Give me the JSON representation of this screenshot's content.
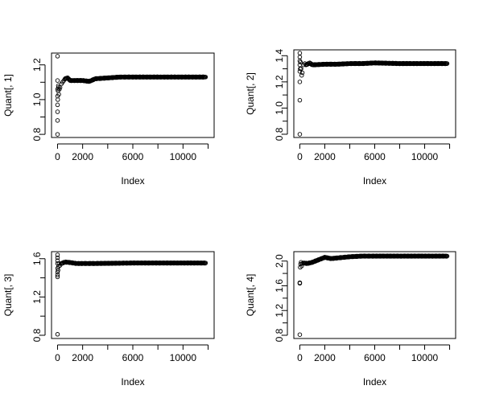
{
  "chart_data": [
    {
      "type": "scatter",
      "xlabel": "Index",
      "ylabel": "Quant[, 1]",
      "xlim": [
        0,
        12000
      ],
      "ylim": [
        0.8,
        1.25
      ],
      "xticks": [
        0,
        2000,
        6000,
        10000
      ],
      "xticks_minor": [
        4000,
        8000,
        12000
      ],
      "yticks": [
        0.8,
        1.0,
        1.2
      ],
      "yticks_minor": [
        0.9,
        1.1
      ],
      "early_points": [
        [
          0,
          1.25
        ],
        [
          0,
          1.11
        ],
        [
          0,
          1.06
        ],
        [
          0,
          1.02
        ],
        [
          0,
          0.97
        ],
        [
          0,
          0.93
        ],
        [
          0,
          0.88
        ],
        [
          0,
          0.8
        ],
        [
          20,
          1.0
        ],
        [
          40,
          1.05
        ],
        [
          60,
          1.08
        ],
        [
          80,
          1.07
        ],
        [
          100,
          1.03
        ],
        [
          150,
          1.06
        ],
        [
          200,
          1.07
        ],
        [
          300,
          1.09
        ],
        [
          400,
          1.1
        ],
        [
          500,
          1.11
        ],
        [
          600,
          1.12
        ]
      ],
      "trend": [
        [
          600,
          1.12
        ],
        [
          800,
          1.125
        ],
        [
          1000,
          1.11
        ],
        [
          1500,
          1.11
        ],
        [
          2000,
          1.11
        ],
        [
          2500,
          1.105
        ],
        [
          2700,
          1.11
        ],
        [
          3000,
          1.12
        ],
        [
          4000,
          1.125
        ],
        [
          5000,
          1.13
        ],
        [
          6000,
          1.13
        ],
        [
          8000,
          1.13
        ],
        [
          10000,
          1.13
        ],
        [
          11800,
          1.13
        ]
      ]
    },
    {
      "type": "scatter",
      "xlabel": "Index",
      "ylabel": "Quant[, 2]",
      "xlim": [
        0,
        12000
      ],
      "ylim": [
        0.8,
        1.42
      ],
      "xticks": [
        0,
        2000,
        6000,
        10000
      ],
      "xticks_minor": [
        4000,
        8000,
        12000
      ],
      "yticks": [
        0.8,
        1.0,
        1.2,
        1.4
      ],
      "yticks_minor": [
        0.9,
        1.1,
        1.3
      ],
      "early_points": [
        [
          0,
          1.42
        ],
        [
          0,
          1.39
        ],
        [
          0,
          1.36
        ],
        [
          0,
          1.33
        ],
        [
          0,
          1.28
        ],
        [
          0,
          1.2
        ],
        [
          0,
          1.06
        ],
        [
          0,
          0.8
        ],
        [
          30,
          1.3
        ],
        [
          60,
          1.35
        ],
        [
          100,
          1.3
        ],
        [
          150,
          1.25
        ],
        [
          200,
          1.27
        ],
        [
          300,
          1.33
        ],
        [
          400,
          1.34
        ],
        [
          500,
          1.33
        ]
      ],
      "trend": [
        [
          500,
          1.33
        ],
        [
          800,
          1.345
        ],
        [
          1000,
          1.33
        ],
        [
          2000,
          1.335
        ],
        [
          3000,
          1.335
        ],
        [
          4000,
          1.34
        ],
        [
          5000,
          1.34
        ],
        [
          6000,
          1.345
        ],
        [
          8000,
          1.34
        ],
        [
          10000,
          1.34
        ],
        [
          11800,
          1.34
        ]
      ]
    },
    {
      "type": "scatter",
      "xlabel": "Index",
      "ylabel": "Quant[, 3]",
      "xlim": [
        0,
        12000
      ],
      "ylim": [
        0.8,
        1.64
      ],
      "xticks": [
        0,
        2000,
        6000,
        10000
      ],
      "xticks_minor": [
        4000,
        8000,
        12000
      ],
      "yticks": [
        0.8,
        1.2,
        1.6
      ],
      "yticks_minor": [
        1.0,
        1.4
      ],
      "early_points": [
        [
          0,
          1.64
        ],
        [
          0,
          1.61
        ],
        [
          0,
          1.58
        ],
        [
          0,
          1.55
        ],
        [
          0,
          1.5
        ],
        [
          0,
          1.46
        ],
        [
          0,
          1.43
        ],
        [
          0,
          1.41
        ],
        [
          0,
          0.81
        ],
        [
          40,
          1.48
        ],
        [
          80,
          1.52
        ],
        [
          120,
          1.55
        ],
        [
          200,
          1.53
        ],
        [
          300,
          1.55
        ]
      ],
      "trend": [
        [
          300,
          1.55
        ],
        [
          600,
          1.565
        ],
        [
          1000,
          1.56
        ],
        [
          1500,
          1.55
        ],
        [
          2000,
          1.55
        ],
        [
          3000,
          1.55
        ],
        [
          6000,
          1.555
        ],
        [
          9000,
          1.555
        ],
        [
          11800,
          1.555
        ]
      ]
    },
    {
      "type": "scatter",
      "xlabel": "Index",
      "ylabel": "Quant[, 4]",
      "xlim": [
        0,
        12000
      ],
      "ylim": [
        0.8,
        2.1
      ],
      "xticks": [
        0,
        2000,
        6000,
        10000
      ],
      "xticks_minor": [
        4000,
        8000,
        12000
      ],
      "yticks": [
        0.8,
        1.2,
        1.6,
        2.0
      ],
      "yticks_minor": [
        1.0,
        1.4,
        1.8
      ],
      "early_points": [
        [
          0,
          1.65
        ],
        [
          0,
          1.64
        ],
        [
          0,
          0.81
        ],
        [
          30,
          1.9
        ],
        [
          60,
          1.95
        ],
        [
          100,
          1.98
        ],
        [
          150,
          1.92
        ],
        [
          200,
          1.96
        ],
        [
          300,
          1.97
        ]
      ],
      "trend": [
        [
          300,
          1.97
        ],
        [
          600,
          1.96
        ],
        [
          1000,
          1.98
        ],
        [
          1500,
          2.02
        ],
        [
          2000,
          2.06
        ],
        [
          2500,
          2.04
        ],
        [
          3000,
          2.05
        ],
        [
          4000,
          2.07
        ],
        [
          5000,
          2.08
        ],
        [
          6000,
          2.08
        ],
        [
          8000,
          2.08
        ],
        [
          10000,
          2.08
        ],
        [
          11800,
          2.08
        ]
      ]
    }
  ]
}
